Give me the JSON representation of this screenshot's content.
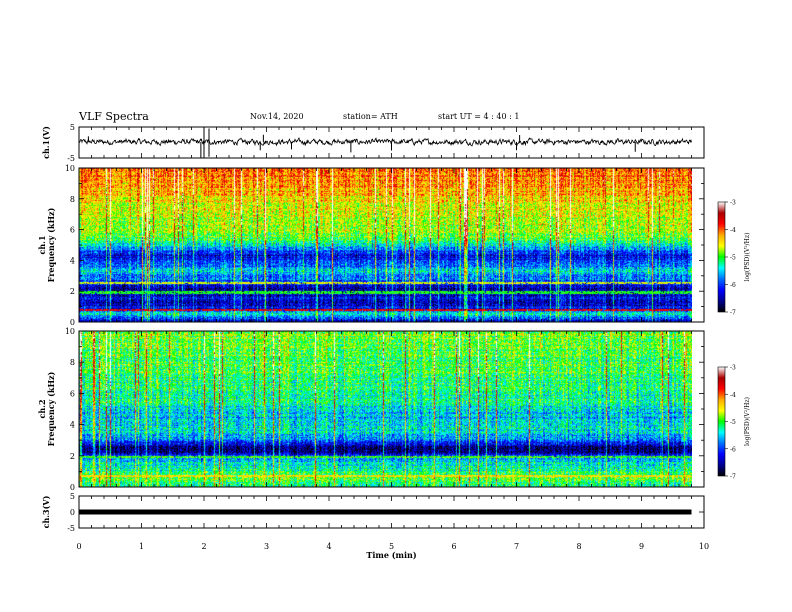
{
  "header": {
    "title": "VLF Spectra",
    "date": "Nov.14, 2020",
    "station": "station= ATH",
    "start": "start  UT =   4 : 40 : 1"
  },
  "colorbar": {
    "label": "log(PSD)(V²/Hz)",
    "ticks": [
      "-3",
      "-4",
      "-5",
      "-6",
      "-7"
    ],
    "colors": [
      "#ffffff",
      "#aa0000",
      "#ff0000",
      "#ffaa00",
      "#ffff00",
      "#00ff00",
      "#00ffff",
      "#0070ff",
      "#0000ff",
      "#000090",
      "#000000"
    ]
  },
  "chart_data": [
    {
      "type": "line",
      "title": "",
      "xlabel": "",
      "ylabel": "ch.1(V)",
      "xlim": [
        0,
        10
      ],
      "ylim": [
        -5,
        5
      ],
      "yticks": [
        "5",
        "-5"
      ],
      "x_min_end": 9.8,
      "baseline": 0.2,
      "noise_amp": 0.6,
      "spikes": [
        {
          "x": 2.0,
          "y": 4.8
        },
        {
          "x": 2.0,
          "y": -4.8
        },
        {
          "x": 2.08,
          "y": 4.5
        },
        {
          "x": 2.08,
          "y": -4.6
        },
        {
          "x": 1.95,
          "y": -4.9
        },
        {
          "x": 2.9,
          "y": -2.5
        },
        {
          "x": 2.95,
          "y": 2.5
        },
        {
          "x": 4.35,
          "y": -3.2
        },
        {
          "x": 5.0,
          "y": -2.6
        },
        {
          "x": 7.0,
          "y": -2.5
        },
        {
          "x": 7.05,
          "y": 2.4
        },
        {
          "x": 8.9,
          "y": -3.0
        },
        {
          "x": 3.4,
          "y": -2.2
        },
        {
          "x": 0.15,
          "y": 2.0
        }
      ]
    },
    {
      "type": "heatmap",
      "title": "",
      "ylabel": "ch.1\nFrequency  (kHz)",
      "xlim": [
        0,
        9.8
      ],
      "ylim": [
        0,
        10
      ],
      "yticks": [
        "0",
        "2",
        "4",
        "6",
        "8",
        "10"
      ],
      "zlim": [
        -7,
        -3
      ],
      "profile": [
        {
          "f": 0.0,
          "z": -6.4
        },
        {
          "f": 0.5,
          "z": -5.4
        },
        {
          "f": 0.8,
          "z": -6.2
        },
        {
          "f": 1.2,
          "z": -6.5
        },
        {
          "f": 1.6,
          "z": -6.3
        },
        {
          "f": 2.0,
          "z": -6.6
        },
        {
          "f": 2.4,
          "z": -6.3
        },
        {
          "f": 2.8,
          "z": -5.8
        },
        {
          "f": 3.3,
          "z": -5.5
        },
        {
          "f": 3.8,
          "z": -6.0
        },
        {
          "f": 4.3,
          "z": -6.3
        },
        {
          "f": 4.9,
          "z": -5.6
        },
        {
          "f": 5.5,
          "z": -4.9
        },
        {
          "f": 6.5,
          "z": -4.7
        },
        {
          "f": 7.5,
          "z": -4.6
        },
        {
          "f": 8.5,
          "z": -4.3
        },
        {
          "f": 9.5,
          "z": -4.1
        },
        {
          "f": 10.0,
          "z": -4.0
        }
      ],
      "lines": [
        {
          "f": 0.75,
          "z": -3.7
        },
        {
          "f": 2.5,
          "z": -4.6
        },
        {
          "f": 1.9,
          "z": -5.0
        }
      ]
    },
    {
      "type": "heatmap",
      "title": "",
      "ylabel": "ch.2\nFrequency  (kHz)",
      "xlim": [
        0,
        9.8
      ],
      "ylim": [
        0,
        10
      ],
      "yticks": [
        "0",
        "2",
        "4",
        "6",
        "8",
        "10"
      ],
      "zlim": [
        -7,
        -3
      ],
      "profile": [
        {
          "f": 0.0,
          "z": -5.2
        },
        {
          "f": 0.6,
          "z": -5.0
        },
        {
          "f": 1.2,
          "z": -5.3
        },
        {
          "f": 1.8,
          "z": -5.6
        },
        {
          "f": 2.2,
          "z": -6.7
        },
        {
          "f": 2.6,
          "z": -6.6
        },
        {
          "f": 3.0,
          "z": -5.7
        },
        {
          "f": 3.6,
          "z": -5.4
        },
        {
          "f": 4.5,
          "z": -5.6
        },
        {
          "f": 5.5,
          "z": -5.3
        },
        {
          "f": 6.5,
          "z": -5.2
        },
        {
          "f": 7.5,
          "z": -5.0
        },
        {
          "f": 8.5,
          "z": -5.0
        },
        {
          "f": 9.5,
          "z": -4.9
        },
        {
          "f": 10.0,
          "z": -4.9
        }
      ],
      "lines": [
        {
          "f": 0.7,
          "z": -4.4
        },
        {
          "f": 1.9,
          "z": -4.9
        }
      ]
    },
    {
      "type": "line",
      "title": "",
      "xlabel": "Time  (min)",
      "ylabel": "ch.3(V)",
      "xlim": [
        0,
        10
      ],
      "ylim": [
        -5,
        5
      ],
      "yticks": [
        "5",
        "0",
        "-5"
      ],
      "xticks": [
        "0",
        "1",
        "2",
        "3",
        "4",
        "5",
        "6",
        "7",
        "8",
        "9",
        "10"
      ],
      "x_min_end": 9.8,
      "baseline": 0.0,
      "noise_amp": 0.0,
      "spikes": []
    }
  ]
}
